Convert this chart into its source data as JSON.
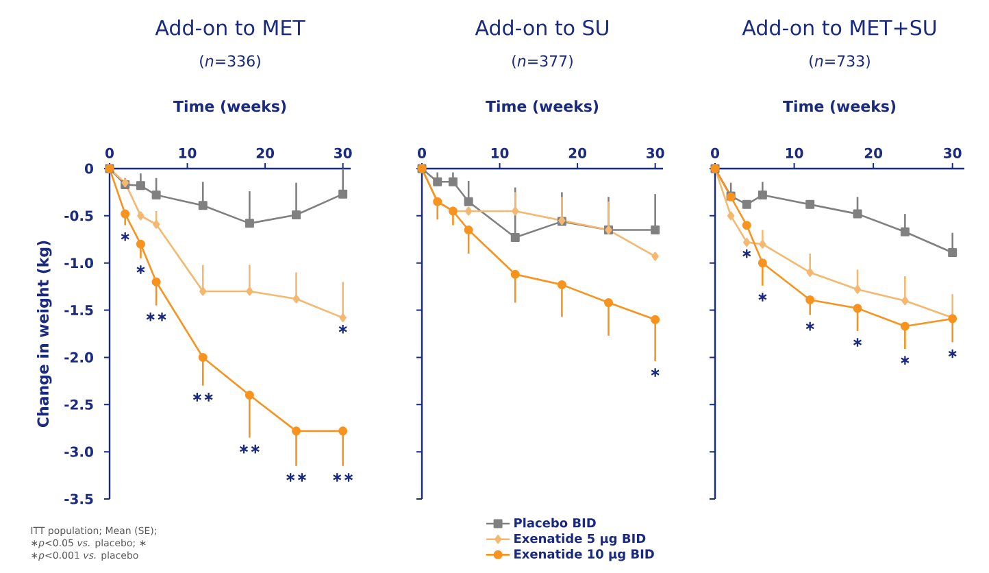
{
  "chart_data": [
    {
      "type": "line",
      "title": "Add-on to MET",
      "subtitle": "(*n*=336)",
      "xlabel": "Time (weeks)",
      "ylabel": "Change in weight (kg)",
      "xlim": [
        0,
        31
      ],
      "xticks": [
        0,
        10,
        20,
        30
      ],
      "ylim": [
        -3.5,
        0
      ],
      "yticks": [
        {
          "value": -3.5,
          "label": "-3.5"
        },
        {
          "value": -3,
          "label": "-3.0"
        },
        {
          "value": -2.5,
          "label": "-2.5"
        },
        {
          "value": -2,
          "label": "-2.0"
        },
        {
          "value": -1.5,
          "label": "-1.5"
        },
        {
          "value": -1,
          "label": "-1.0"
        },
        {
          "value": -0.5,
          "label": "-0.5"
        },
        0
      ],
      "x": [
        0,
        2,
        4,
        6,
        12,
        18,
        24,
        30
      ],
      "line_style": "solid",
      "series": [
        {
          "color": "#808080",
          "marker": "square",
          "values": [
            0,
            -0.17,
            -0.18,
            -0.28,
            -0.39,
            -0.58,
            -0.49,
            -0.27
          ],
          "errors": [
            null,
            [
              -0.17,
              -0.1
            ],
            [
              -0.18,
              -0.05
            ],
            [
              -0.28,
              -0.1
            ],
            [
              -0.39,
              -0.14
            ],
            [
              -0.58,
              -0.24
            ],
            [
              -0.49,
              -0.15
            ],
            [
              -0.27,
              0
            ]
          ]
        },
        {
          "color": "#f5b870",
          "marker": "diamond",
          "values": [
            0,
            -0.15,
            -0.5,
            -0.59,
            -1.3,
            -1.3,
            -1.38,
            -1.58
          ],
          "errors": [
            null,
            null,
            null,
            [
              -0.59,
              -0.45
            ],
            [
              -1.3,
              -1.02
            ],
            [
              -1.3,
              -1.02
            ],
            [
              -1.38,
              -1.1
            ],
            [
              -1.58,
              -1.2
            ]
          ]
        },
        {
          "color": "#f7931e",
          "marker": "circle",
          "values": [
            0,
            -0.48,
            -0.8,
            -1.2,
            -2.0,
            -2.4,
            -2.78,
            -2.78
          ],
          "errors": [
            null,
            [
              -0.6,
              -0.48
            ],
            [
              -0.95,
              -0.8
            ],
            [
              -1.45,
              -1.2
            ],
            [
              -2.3,
              -2.0
            ],
            [
              -2.85,
              -2.4
            ],
            [
              -3.15,
              -2.78
            ],
            [
              -3.15,
              -2.78
            ]
          ]
        }
      ],
      "annotations": [
        {
          "text": "∗",
          "x": 2,
          "y": -0.6
        },
        {
          "text": "∗",
          "x": 4,
          "y": -0.95
        },
        {
          "text": "∗∗",
          "x": 6,
          "y": -1.45
        },
        {
          "text": "∗∗",
          "x": 12,
          "y": -2.3
        },
        {
          "text": "∗∗",
          "x": 18,
          "y": -2.85
        },
        {
          "text": "∗∗",
          "x": 24,
          "y": -3.15
        },
        {
          "text": "∗∗",
          "x": 30,
          "y": -3.15
        },
        {
          "text": "∗",
          "x": 30,
          "y": -1.58
        },
        "ITT population; Mean (SE);",
        "∗*p*<0.05 *vs.* placebo; ∗",
        "∗*p*<0.001 *vs.* placebo"
      ]
    },
    {
      "type": "line",
      "title": "Add-on to SU",
      "subtitle": "(*n*=377)",
      "xlabel": "Time (weeks)",
      "xlim": [
        0,
        31
      ],
      "xticks": [
        0,
        10,
        20,
        30
      ],
      "ylim": [
        -3.5,
        0
      ],
      "yticks": [
        -3.5,
        -3,
        -2.5,
        -2,
        -1.5,
        -1,
        -0.5,
        0
      ],
      "tick_labels": "x",
      "x": [
        0,
        2,
        4,
        6,
        12,
        18,
        24,
        30
      ],
      "line_style": "solid",
      "legend": "bottom",
      "series": [
        {
          "name": "Placebo BID",
          "color": "#808080",
          "marker": "square",
          "values": [
            0,
            -0.14,
            -0.14,
            -0.35,
            -0.73,
            -0.56,
            -0.65,
            -0.65
          ],
          "errors": [
            null,
            [
              -0.14,
              -0.04
            ],
            [
              -0.14,
              -0.04
            ],
            [
              -0.35,
              -0.13
            ],
            [
              -0.73,
              -0.2
            ],
            [
              -0.56,
              -0.25
            ],
            [
              -0.65,
              -0.3
            ],
            [
              -0.65,
              -0.27
            ]
          ]
        },
        {
          "name": "Exenatide 5 µg BID",
          "color": "#f5b870",
          "marker": "diamond",
          "values": [
            0,
            -0.35,
            -0.45,
            -0.45,
            -0.45,
            -0.55,
            -0.65,
            -0.93
          ],
          "errors": [
            null,
            null,
            null,
            null,
            [
              -0.45,
              -0.25
            ],
            [
              -0.55,
              -0.3
            ],
            [
              -0.65,
              -0.35
            ],
            null
          ]
        },
        {
          "name": "Exenatide 10 µg BID",
          "color": "#f7931e",
          "marker": "circle",
          "values": [
            0,
            -0.35,
            -0.45,
            -0.65,
            -1.12,
            -1.23,
            -1.42,
            -1.6
          ],
          "errors": [
            null,
            [
              -0.54,
              -0.35
            ],
            [
              -0.6,
              -0.45
            ],
            [
              -0.9,
              -0.65
            ],
            [
              -1.42,
              -1.12
            ],
            [
              -1.57,
              -1.23
            ],
            [
              -1.77,
              -1.42
            ],
            [
              -2.04,
              -1.6
            ]
          ]
        }
      ],
      "annotations": [
        {
          "text": "∗",
          "x": 30,
          "y": -2.04
        }
      ]
    },
    {
      "type": "line",
      "title": "Add-on to MET+SU",
      "subtitle": "(*n*=733)",
      "xlabel": "Time (weeks)",
      "xlim": [
        0,
        31.5
      ],
      "xticks": [
        0,
        10,
        20,
        30
      ],
      "ylim": [
        -3.5,
        0
      ],
      "yticks": [
        -3.5,
        -3,
        -2.5,
        -2,
        -1.5,
        -1,
        -0.5,
        0
      ],
      "tick_labels": "x",
      "x": [
        0,
        2,
        4,
        6,
        12,
        18,
        24,
        30
      ],
      "line_style": "solid",
      "series": [
        {
          "color": "#808080",
          "marker": "square",
          "values": [
            0,
            -0.29,
            -0.38,
            -0.28,
            -0.38,
            -0.48,
            -0.67,
            -0.89
          ],
          "errors": [
            null,
            [
              -0.29,
              -0.15
            ],
            null,
            [
              -0.28,
              -0.14
            ],
            null,
            [
              -0.48,
              -0.3
            ],
            [
              -0.67,
              -0.48
            ],
            [
              -0.89,
              -0.68
            ]
          ]
        },
        {
          "color": "#f5b870",
          "marker": "diamond",
          "values": [
            0,
            -0.5,
            -0.78,
            -0.8,
            -1.1,
            -1.28,
            -1.4,
            -1.58
          ],
          "errors": [
            null,
            null,
            null,
            [
              -0.8,
              -0.65
            ],
            [
              -1.1,
              -0.9
            ],
            [
              -1.28,
              -1.07
            ],
            [
              -1.4,
              -1.14
            ],
            [
              -1.58,
              -1.33
            ]
          ]
        },
        {
          "color": "#f7931e",
          "marker": "circle",
          "values": [
            0,
            -0.3,
            -0.6,
            -1.0,
            -1.39,
            -1.48,
            -1.67,
            -1.59
          ],
          "errors": [
            null,
            null,
            null,
            [
              -1.24,
              -1.0
            ],
            [
              -1.55,
              -1.39
            ],
            [
              -1.72,
              -1.48
            ],
            [
              -1.91,
              -1.67
            ],
            [
              -1.84,
              -1.59
            ]
          ]
        }
      ],
      "annotations": [
        {
          "text": "∗",
          "x": 4,
          "y": -0.78
        },
        {
          "text": "∗",
          "x": 6,
          "y": -1.24
        },
        {
          "text": "∗",
          "x": 12,
          "y": -1.55
        },
        {
          "text": "∗",
          "x": 18,
          "y": -1.72
        },
        {
          "text": "∗",
          "x": 24,
          "y": -1.91
        },
        {
          "text": "∗",
          "x": 30,
          "y": -1.84
        }
      ]
    }
  ]
}
